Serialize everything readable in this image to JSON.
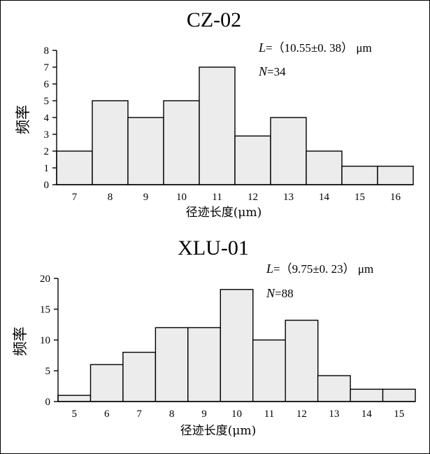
{
  "chart_data": [
    {
      "type": "bar",
      "title": "CZ-02",
      "categories": [
        "7",
        "8",
        "9",
        "10",
        "11",
        "12",
        "13",
        "14",
        "15",
        "16"
      ],
      "values": [
        2,
        5,
        4,
        5,
        7,
        2.9,
        4,
        2,
        1.1,
        1.1
      ],
      "ylabel": "频率",
      "xlabel": "径迹长度(μm)",
      "ylim": [
        0,
        8
      ],
      "yticks": [
        0,
        1,
        2,
        3,
        4,
        5,
        6,
        7,
        8
      ],
      "annotations": {
        "l_var": "L",
        "l_value": "=（10.55±0. 38） μm",
        "n_var": "N",
        "n_value": "=34"
      },
      "grid": false
    },
    {
      "type": "bar",
      "title": "XLU-01",
      "categories": [
        "5",
        "6",
        "7",
        "8",
        "9",
        "10",
        "11",
        "12",
        "13",
        "14",
        "15"
      ],
      "values": [
        1,
        6,
        8,
        12,
        12,
        18.2,
        10,
        13.2,
        4.2,
        2,
        2
      ],
      "ylabel": "频率",
      "xlabel": "径迹长度(μm)",
      "ylim": [
        0,
        20
      ],
      "yticks": [
        0,
        5,
        10,
        15,
        20
      ],
      "annotations": {
        "l_var": "L",
        "l_value": "=（9.75±0. 23） μm",
        "n_var": "N",
        "n_value": "=88"
      },
      "grid": false
    }
  ]
}
